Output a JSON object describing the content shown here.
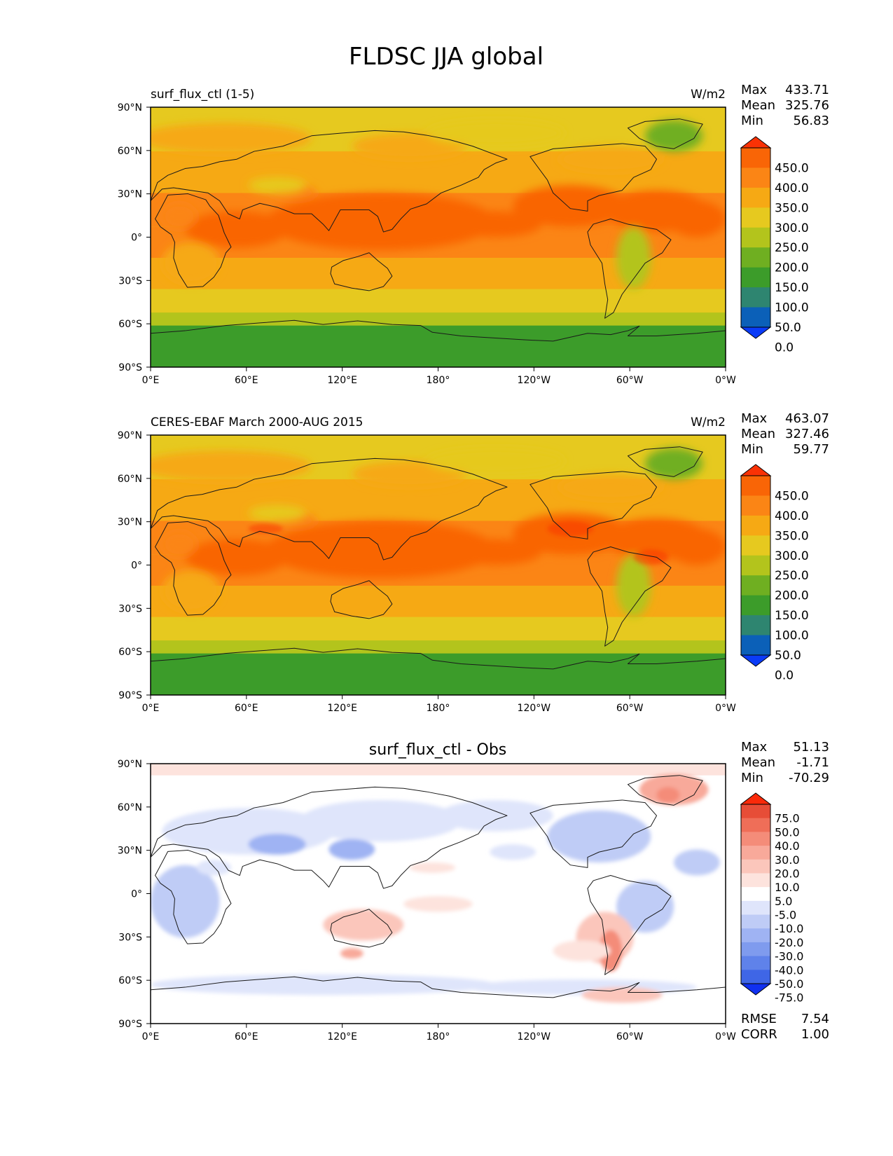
{
  "title": "FLDSC JJA global",
  "colors": {
    "main_levels": [
      "#0a3bf7",
      "#0b60b8",
      "#2e8570",
      "#3c9c2a",
      "#6faf21",
      "#b3c41c",
      "#e6c91f",
      "#f6a914",
      "#fb8515",
      "#f96506",
      "#fa3205"
    ],
    "diff_levels": [
      "#1030f0",
      "#3f66e6",
      "#5f82ea",
      "#7f9bee",
      "#9fb3f3",
      "#bfccf6",
      "#dfe5fb",
      "#ffffff",
      "#fde3dd",
      "#fbc6bb",
      "#f8a99a",
      "#f48c79",
      "#ef6e58",
      "#e74d37",
      "#fa2a0a"
    ]
  },
  "chart_data": [
    {
      "type": "heatmap",
      "name": "surf_flux_ctl (1-5)",
      "units": "W/m2",
      "stats": {
        "max_label": "Max",
        "max": "433.71",
        "mean_label": "Mean",
        "mean": "325.76",
        "min_label": "Min",
        "min": "56.83"
      },
      "colorbar_labels": [
        "450.0",
        "400.0",
        "350.0",
        "300.0",
        "250.0",
        "200.0",
        "150.0",
        "100.0",
        "50.0",
        "0.0"
      ],
      "xticks": [
        "0°E",
        "60°E",
        "120°E",
        "180°",
        "120°W",
        "60°W",
        "0°W"
      ],
      "yticks": [
        "90°N",
        "60°N",
        "30°N",
        "0°",
        "30°S",
        "60°S",
        "90°S"
      ]
    },
    {
      "type": "heatmap",
      "name": "CERES-EBAF March 2000-AUG 2015",
      "units": "W/m2",
      "stats": {
        "max_label": "Max",
        "max": "463.07",
        "mean_label": "Mean",
        "mean": "327.46",
        "min_label": "Min",
        "min": "59.77"
      },
      "colorbar_labels": [
        "450.0",
        "400.0",
        "350.0",
        "300.0",
        "250.0",
        "200.0",
        "150.0",
        "100.0",
        "50.0",
        "0.0"
      ],
      "xticks": [
        "0°E",
        "60°E",
        "120°E",
        "180°",
        "120°W",
        "60°W",
        "0°W"
      ],
      "yticks": [
        "90°N",
        "60°N",
        "30°N",
        "0°",
        "30°S",
        "60°S",
        "90°S"
      ]
    },
    {
      "type": "heatmap",
      "name": "surf_flux_ctl - Obs",
      "units": "",
      "stats": {
        "max_label": "Max",
        "max": "51.13",
        "mean_label": "Mean",
        "mean": "-1.71",
        "min_label": "Min",
        "min": "-70.29"
      },
      "colorbar_labels": [
        "75.0",
        "50.0",
        "40.0",
        "30.0",
        "20.0",
        "10.0",
        "5.0",
        "-5.0",
        "-10.0",
        "-20.0",
        "-30.0",
        "-40.0",
        "-50.0",
        "-75.0"
      ],
      "xticks": [
        "0°E",
        "60°E",
        "120°E",
        "180°",
        "120°W",
        "60°W",
        "0°W"
      ],
      "yticks": [
        "90°N",
        "60°N",
        "30°N",
        "0°",
        "30°S",
        "60°S",
        "90°S"
      ],
      "rmse_label": "RMSE",
      "rmse": "7.54",
      "corr_label": "CORR",
      "corr": "1.00"
    }
  ]
}
